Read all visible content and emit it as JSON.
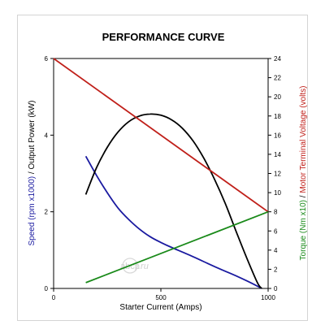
{
  "chart_data": {
    "type": "line",
    "title": "PERFORMANCE CURVE",
    "xlabel": "Starter Current (Amps)",
    "xlim": [
      0,
      1000
    ],
    "xticks": [
      0,
      500,
      1000
    ],
    "left_axis": {
      "ylim": [
        0,
        6
      ],
      "ticks": [
        0,
        2,
        4,
        6
      ],
      "label_parts": [
        {
          "text": "Speed (rpm x1000)",
          "color": "#1a1aa0"
        },
        {
          "text": "  /  ",
          "color": "#000000"
        },
        {
          "text": "Output Power (kW)",
          "color": "#000000"
        }
      ]
    },
    "right_axis": {
      "ylim": [
        0,
        24
      ],
      "ticks": [
        0,
        2,
        4,
        6,
        8,
        10,
        12,
        14,
        16,
        18,
        20,
        22,
        24
      ],
      "label_parts": [
        {
          "text": "Torque (Nm x10)",
          "color": "#1a8a1a"
        },
        {
          "text": "  /  ",
          "color": "#000000"
        },
        {
          "text": "Motor Terminal Voltage (volts)",
          "color": "#c0201a"
        }
      ]
    },
    "grid": false,
    "series": [
      {
        "axis": "left",
        "color": "#1a1aa0",
        "x": [
          150,
          200,
          250,
          300,
          350,
          400,
          450,
          500,
          550,
          600,
          650,
          700,
          750,
          800,
          850,
          900,
          950,
          970
        ],
        "y": [
          3.45,
          2.95,
          2.5,
          2.1,
          1.8,
          1.55,
          1.35,
          1.2,
          1.07,
          0.95,
          0.83,
          0.7,
          0.57,
          0.45,
          0.33,
          0.2,
          0.06,
          0
        ]
      },
      {
        "axis": "left",
        "color": "#000000",
        "x": [
          150,
          200,
          250,
          300,
          350,
          400,
          450,
          500,
          550,
          600,
          650,
          700,
          750,
          800,
          850,
          900,
          950,
          970
        ],
        "y": [
          2.45,
          3.15,
          3.68,
          4.08,
          4.35,
          4.5,
          4.55,
          4.52,
          4.4,
          4.18,
          3.85,
          3.4,
          2.85,
          2.22,
          1.5,
          0.8,
          0.15,
          0
        ]
      },
      {
        "axis": "right",
        "color": "#c0201a",
        "x": [
          0,
          1000
        ],
        "y": [
          24,
          8
        ]
      },
      {
        "axis": "right",
        "color": "#1a8a1a",
        "x": [
          150,
          1000
        ],
        "y": [
          0.6,
          8
        ]
      }
    ]
  },
  "watermark": {
    "brand": "abcp",
    "tld": ".ru"
  }
}
